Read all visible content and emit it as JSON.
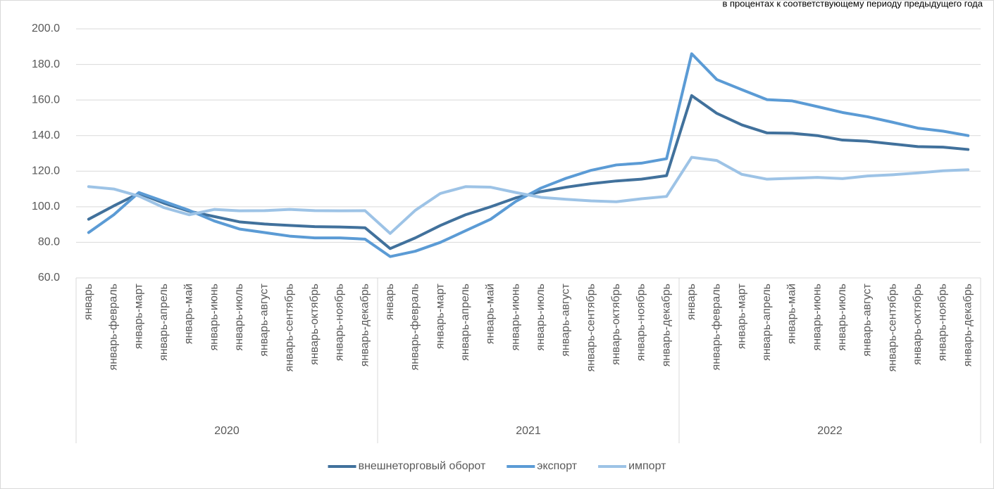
{
  "chart_data": {
    "type": "line",
    "subtitle": "в процентах к соответствующему периоду предыдущего года",
    "categories": [
      "январь",
      "январь-февраль",
      "январь-март",
      "январь-апрель",
      "январь-май",
      "январь-июнь",
      "январь-июль",
      "январь-август",
      "январь-сентябрь",
      "январь-октябрь",
      "январь-ноябрь",
      "январь-декабрь",
      "январь",
      "январь-февраль",
      "январь-март",
      "январь-апрель",
      "январь-май",
      "январь-июнь",
      "январь-июль",
      "январь-август",
      "январь-сентябрь",
      "январь-октябрь",
      "январь-ноябрь",
      "январь-декабрь",
      "январь",
      "январь-февраль",
      "январь-март",
      "январь-апрель",
      "январь-май",
      "январь-июнь",
      "январь-июль",
      "январь-август",
      "январь-сентябрь",
      "январь-октябрь",
      "январь-ноябрь",
      "январь-декабрь"
    ],
    "category_groups": [
      "2020",
      "2021",
      "2022"
    ],
    "series": [
      {
        "name": "внешнеторговый оборот",
        "color": "#41719c",
        "values": [
          93,
          100.5,
          107.5,
          102,
          97.5,
          94.5,
          91.5,
          90.3,
          89.5,
          88.8,
          88.6,
          88.2,
          76.5,
          82.5,
          89.5,
          95.5,
          100,
          105,
          108.5,
          111,
          113,
          114.5,
          115.5,
          117.5,
          162.5,
          152.5,
          146,
          141.5,
          141.3,
          140,
          137.5,
          136.8,
          135.3,
          133.8,
          133.5,
          132.2
        ]
      },
      {
        "name": "экспорт",
        "color": "#5b9bd5",
        "values": [
          85.5,
          95.5,
          108,
          103,
          98,
          92,
          87.5,
          85.5,
          83.5,
          82.5,
          82.5,
          81.8,
          72,
          75,
          80,
          86.5,
          93,
          103,
          110.5,
          116,
          120.5,
          123.5,
          124.5,
          127,
          186,
          171.5,
          165.8,
          160.2,
          159.5,
          156.3,
          153,
          150.6,
          147.5,
          144.2,
          142.5,
          140
        ]
      },
      {
        "name": "импорт",
        "color": "#9dc3e6",
        "values": [
          111.3,
          110,
          106,
          99.5,
          95.5,
          98.5,
          97.7,
          97.8,
          98.5,
          97.8,
          97.7,
          97.8,
          85,
          98,
          107.5,
          111.3,
          111,
          108,
          105.3,
          104.2,
          103.3,
          102.8,
          104.5,
          105.8,
          127.8,
          126,
          118.2,
          115.5,
          116,
          116.5,
          115.8,
          117.3,
          118,
          119,
          120.2,
          120.8
        ]
      }
    ],
    "ylim": [
      60,
      200
    ],
    "yticks": [
      {
        "value": 60,
        "label": "60.0"
      },
      {
        "value": 80,
        "label": "80.0"
      },
      {
        "value": 100,
        "label": "100.0"
      },
      {
        "value": 120,
        "label": "120.0"
      },
      {
        "value": 140,
        "label": "140.0"
      },
      {
        "value": 160,
        "label": "160.0"
      },
      {
        "value": 180,
        "label": "180.0"
      },
      {
        "value": 200,
        "label": "200.0"
      }
    ],
    "grid": true,
    "legend": "bottom"
  }
}
